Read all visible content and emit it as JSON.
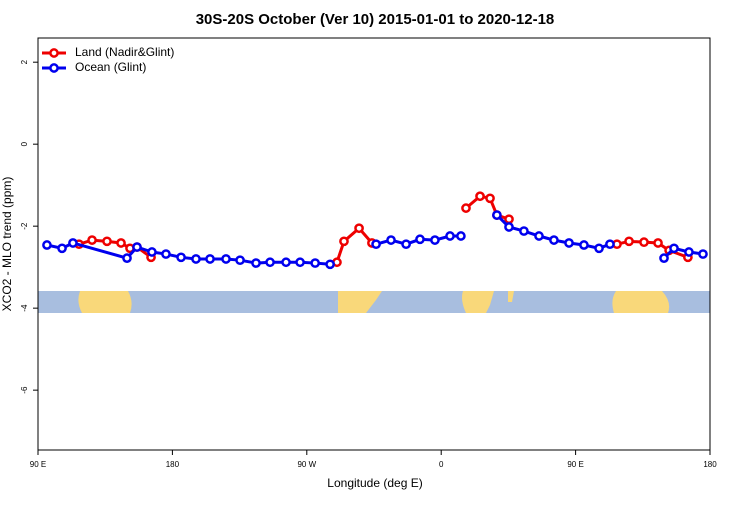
{
  "chart_data": {
    "type": "line",
    "title": "30S-20S October (Ver 10)   2015-01-01 to 2020-12-18",
    "x_label": "Longitude (deg E)",
    "y_label": "XCO2 - MLO trend (ppm)",
    "xlim": [
      90,
      540
    ],
    "ylim": [
      -7.46,
      2.59
    ],
    "xticks": [
      {
        "value": 90,
        "label": "90 E"
      },
      {
        "value": 180,
        "label": "180"
      },
      {
        "value": 270,
        "label": "90 W"
      },
      {
        "value": 360,
        "label": "0"
      },
      {
        "value": 450,
        "label": "90 E"
      },
      {
        "value": 540,
        "label": "180"
      }
    ],
    "yticks": [
      2,
      0,
      -2,
      -4,
      -6
    ],
    "legend": "top-left",
    "series": [
      {
        "name": "Land (Nadir&Glint)",
        "color": "#ee0000",
        "x": [
          117.5,
          126.2,
          136.2,
          145.6,
          151.6,
          156.3,
          165.7,
          null,
          290.2,
          294.9,
          305.0,
          313.6,
          null,
          376.6,
          386.0,
          392.7,
          397.3,
          405.4,
          null,
          477.7,
          485.8,
          495.8,
          505.2,
          512.6,
          525.2
        ],
        "values": [
          -2.44,
          -2.34,
          -2.37,
          -2.41,
          -2.54,
          -2.51,
          -2.76,
          null,
          -2.88,
          -2.37,
          -2.05,
          -2.41,
          null,
          -1.56,
          -1.27,
          -1.32,
          -1.73,
          -1.83,
          null,
          -2.44,
          -2.37,
          -2.39,
          -2.41,
          -2.59,
          -2.76
        ]
      },
      {
        "name": "Ocean (Glint)",
        "color": "#0000ee",
        "x": [
          96.0,
          106.1,
          113.4,
          149.6,
          156.3,
          166.3,
          175.7,
          185.8,
          195.8,
          205.2,
          215.9,
          225.3,
          236.0,
          245.4,
          256.1,
          265.5,
          275.6,
          285.6,
          null,
          316.4,
          326.4,
          336.5,
          345.8,
          355.8,
          365.9,
          373.2,
          null,
          397.3,
          405.4,
          415.4,
          425.5,
          435.5,
          445.6,
          455.6,
          465.7,
          473.0,
          null,
          509.2,
          515.9,
          525.9,
          535.3
        ],
        "values": [
          -2.46,
          -2.54,
          -2.41,
          -2.78,
          -2.51,
          -2.63,
          -2.68,
          -2.76,
          -2.8,
          -2.8,
          -2.8,
          -2.83,
          -2.9,
          -2.88,
          -2.88,
          -2.88,
          -2.9,
          -2.93,
          null,
          -2.44,
          -2.34,
          -2.44,
          -2.32,
          -2.34,
          -2.24,
          -2.24,
          null,
          -1.73,
          -2.02,
          -2.12,
          -2.24,
          -2.34,
          -2.41,
          -2.46,
          -2.54,
          -2.44,
          null,
          -2.78,
          -2.54,
          -2.63,
          -2.68
        ]
      }
    ]
  }
}
